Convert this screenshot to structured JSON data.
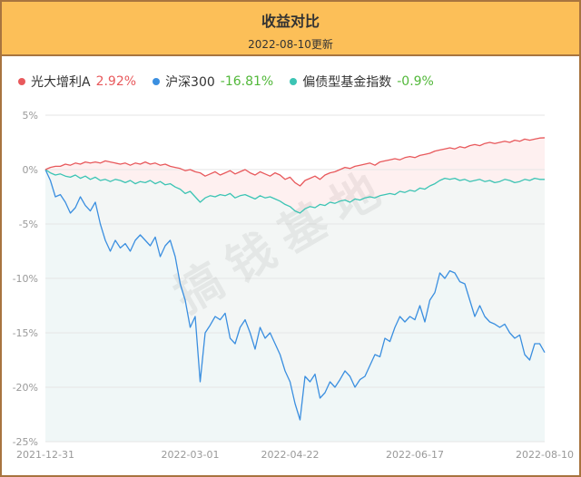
{
  "chart_data": {
    "type": "line",
    "title": "收益对比",
    "subtitle": "2022-08-10更新",
    "watermark": "搞钱基地",
    "categories": [
      "2021-12-31",
      null,
      null,
      null,
      null,
      null,
      null,
      null,
      null,
      null,
      null,
      null,
      null,
      null,
      null,
      null,
      null,
      null,
      null,
      null,
      null,
      null,
      null,
      null,
      null,
      null,
      null,
      null,
      null,
      "2022-03-01",
      null,
      null,
      null,
      null,
      null,
      null,
      null,
      null,
      null,
      null,
      null,
      null,
      null,
      null,
      null,
      null,
      null,
      null,
      null,
      "2022-04-22",
      null,
      null,
      null,
      null,
      null,
      null,
      null,
      null,
      null,
      null,
      null,
      null,
      null,
      null,
      null,
      null,
      null,
      null,
      null,
      null,
      null,
      null,
      null,
      null,
      "2022-06-17",
      null,
      null,
      null,
      null,
      null,
      null,
      null,
      null,
      null,
      null,
      null,
      null,
      null,
      null,
      null,
      null,
      null,
      null,
      null,
      null,
      null,
      null,
      null,
      null,
      null,
      "2022-08-10"
    ],
    "ylim": [
      -25,
      5
    ],
    "yticks": [
      {
        "value": 5,
        "label": "5%"
      },
      {
        "value": 0,
        "label": "0%"
      },
      {
        "value": -5,
        "label": "-5%"
      },
      {
        "value": -10,
        "label": "-10%"
      },
      {
        "value": -15,
        "label": "-15%"
      },
      {
        "value": -20,
        "label": "-20%"
      },
      {
        "value": -25,
        "label": "-25%"
      }
    ],
    "grid": true,
    "series": [
      {
        "name": "光大增利A",
        "color": "#e8595c",
        "legend_value": "2.92%",
        "legend_value_color": "#e8595c",
        "fill": "#fdeaea",
        "values": [
          0,
          0.2,
          0.3,
          0.3,
          0.5,
          0.4,
          0.6,
          0.5,
          0.7,
          0.6,
          0.7,
          0.6,
          0.8,
          0.7,
          0.6,
          0.5,
          0.6,
          0.4,
          0.6,
          0.5,
          0.7,
          0.5,
          0.6,
          0.4,
          0.5,
          0.3,
          0.2,
          0.1,
          -0.1,
          0.0,
          -0.2,
          -0.3,
          -0.6,
          -0.4,
          -0.2,
          -0.5,
          -0.3,
          -0.1,
          -0.4,
          -0.2,
          0.0,
          -0.3,
          -0.5,
          -0.2,
          -0.4,
          -0.6,
          -0.3,
          -0.5,
          -0.9,
          -0.7,
          -1.2,
          -1.5,
          -1.0,
          -0.8,
          -0.6,
          -0.9,
          -0.5,
          -0.3,
          -0.2,
          0.0,
          0.2,
          0.1,
          0.3,
          0.4,
          0.5,
          0.6,
          0.4,
          0.7,
          0.8,
          0.9,
          1.0,
          0.9,
          1.1,
          1.2,
          1.1,
          1.3,
          1.4,
          1.5,
          1.7,
          1.8,
          1.9,
          2.0,
          1.9,
          2.1,
          2.0,
          2.2,
          2.3,
          2.2,
          2.4,
          2.5,
          2.4,
          2.5,
          2.6,
          2.5,
          2.7,
          2.6,
          2.8,
          2.7,
          2.8,
          2.9,
          2.92
        ]
      },
      {
        "name": "沪深300",
        "color": "#3b8fe0",
        "legend_value": "-16.81%",
        "legend_value_color": "#52b83a",
        "fill": "#eef5fb",
        "values": [
          0,
          -1,
          -2.5,
          -2.3,
          -3,
          -4,
          -3.5,
          -2.5,
          -3.3,
          -3.8,
          -3,
          -5,
          -6.5,
          -7.5,
          -6.5,
          -7.2,
          -6.8,
          -7.5,
          -6.5,
          -6,
          -6.5,
          -7,
          -6.2,
          -8,
          -7,
          -6.5,
          -8,
          -10.5,
          -12,
          -14.5,
          -13.5,
          -19.5,
          -15,
          -14.3,
          -13.5,
          -13.8,
          -13.2,
          -15.5,
          -16,
          -14.5,
          -13.8,
          -15,
          -16.5,
          -14.5,
          -15.5,
          -15,
          -16,
          -17,
          -18.5,
          -19.5,
          -21.5,
          -23,
          -19,
          -19.5,
          -18.8,
          -21,
          -20.5,
          -19.5,
          -20,
          -19.3,
          -18.5,
          -19,
          -20,
          -19.3,
          -19,
          -18,
          -17,
          -17.2,
          -15.5,
          -15.8,
          -14.5,
          -13.5,
          -14,
          -13.5,
          -13.8,
          -12.5,
          -14,
          -12,
          -11.3,
          -9.5,
          -10,
          -9.3,
          -9.5,
          -10.3,
          -10.5,
          -12,
          -13.5,
          -12.5,
          -13.5,
          -14,
          -14.2,
          -14.5,
          -14.2,
          -15,
          -15.5,
          -15.2,
          -17,
          -17.5,
          -16,
          -16,
          -16.81
        ]
      },
      {
        "name": "偏债型基金指数",
        "color": "#3cc4b4",
        "legend_value": "-0.9%",
        "legend_value_color": "#52b83a",
        "fill": "#eef8f7",
        "values": [
          0,
          -0.3,
          -0.5,
          -0.4,
          -0.6,
          -0.7,
          -0.5,
          -0.8,
          -0.6,
          -0.9,
          -0.7,
          -1.0,
          -0.9,
          -1.1,
          -0.9,
          -1.0,
          -1.2,
          -1.0,
          -1.3,
          -1.1,
          -1.2,
          -1.0,
          -1.3,
          -1.1,
          -1.4,
          -1.3,
          -1.6,
          -1.8,
          -2.2,
          -2.0,
          -2.5,
          -3.0,
          -2.6,
          -2.4,
          -2.5,
          -2.3,
          -2.4,
          -2.2,
          -2.6,
          -2.4,
          -2.3,
          -2.5,
          -2.7,
          -2.4,
          -2.6,
          -2.5,
          -2.7,
          -2.9,
          -3.2,
          -3.4,
          -3.8,
          -4.0,
          -3.6,
          -3.4,
          -3.5,
          -3.2,
          -3.3,
          -3.0,
          -3.1,
          -2.9,
          -2.8,
          -3.0,
          -2.7,
          -2.8,
          -2.6,
          -2.5,
          -2.6,
          -2.4,
          -2.3,
          -2.2,
          -2.3,
          -2.0,
          -2.1,
          -1.9,
          -2.0,
          -1.7,
          -1.8,
          -1.5,
          -1.3,
          -1.0,
          -0.8,
          -0.9,
          -0.8,
          -1.0,
          -0.9,
          -1.1,
          -1.0,
          -0.9,
          -1.1,
          -1.0,
          -1.2,
          -1.1,
          -0.9,
          -1.0,
          -1.2,
          -1.1,
          -0.9,
          -1.0,
          -0.8,
          -0.9,
          -0.9
        ]
      }
    ]
  }
}
